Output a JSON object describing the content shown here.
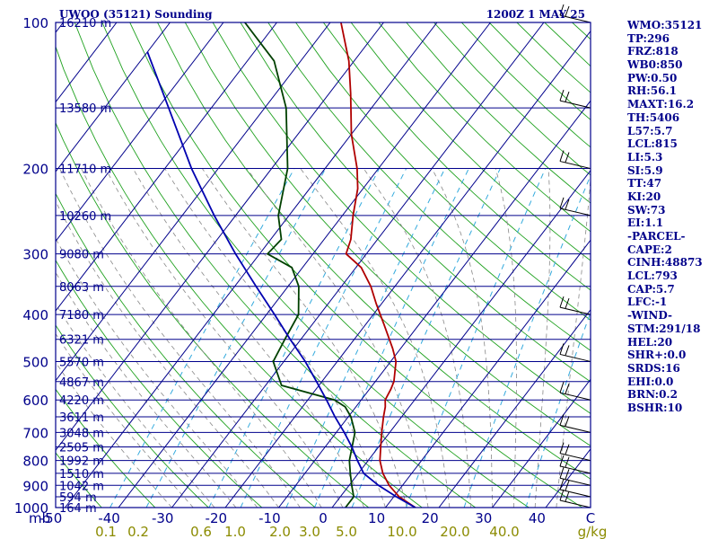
{
  "header": {
    "station": "UWOO (35121) Sounding",
    "time": "1200Z  1 MAY 25"
  },
  "chart_data": {
    "type": "line",
    "xlabel": "",
    "ylabel": "mb",
    "pressure_levels": [
      "100",
      "200",
      "300",
      "400",
      "500",
      "600",
      "700",
      "800",
      "900",
      "1000"
    ],
    "temp_ticks": [
      "-50",
      "-40",
      "-30",
      "-20",
      "-10",
      "0",
      "10",
      "20",
      "30",
      "40",
      "C"
    ],
    "mixing_ratio_ticks": [
      "0.1",
      "0.2",
      "0.6",
      "1.0",
      "2.0",
      "3.0",
      "5.0",
      "10.0",
      "20.0",
      "40.0",
      "g/kg"
    ],
    "height_labels": [
      {
        "p": 100,
        "label": "16210 m"
      },
      {
        "p": 150,
        "label": "13580 m"
      },
      {
        "p": 200,
        "label": "11710 m"
      },
      {
        "p": 250,
        "label": "10260 m"
      },
      {
        "p": 300,
        "label": "9080 m"
      },
      {
        "p": 350,
        "label": "8063 m"
      },
      {
        "p": 400,
        "label": "7180 m"
      },
      {
        "p": 450,
        "label": "6321 m"
      },
      {
        "p": 500,
        "label": "5570 m"
      },
      {
        "p": 550,
        "label": "4867 m"
      },
      {
        "p": 600,
        "label": "4220 m"
      },
      {
        "p": 650,
        "label": "3611 m"
      },
      {
        "p": 700,
        "label": "3048 m"
      },
      {
        "p": 750,
        "label": "2505 m"
      },
      {
        "p": 800,
        "label": "1992 m"
      },
      {
        "p": 850,
        "label": "1510 m"
      },
      {
        "p": 900,
        "label": "1042 m"
      },
      {
        "p": 950,
        "label": "594 m"
      },
      {
        "p": 1000,
        "label": "164 m"
      }
    ],
    "series": [
      {
        "key": "temperature",
        "color": "#b00000",
        "points": [
          {
            "p": 1000,
            "t": 15.6
          },
          {
            "p": 950,
            "t": 11
          },
          {
            "p": 900,
            "t": 7.5
          },
          {
            "p": 850,
            "t": 4.6
          },
          {
            "p": 800,
            "t": 2.2
          },
          {
            "p": 750,
            "t": 0.4
          },
          {
            "p": 700,
            "t": -1.5
          },
          {
            "p": 650,
            "t": -3.4
          },
          {
            "p": 620,
            "t": -4.5
          },
          {
            "p": 600,
            "t": -5.5
          },
          {
            "p": 570,
            "t": -6
          },
          {
            "p": 550,
            "t": -6.5
          },
          {
            "p": 500,
            "t": -9
          },
          {
            "p": 470,
            "t": -11.5
          },
          {
            "p": 420,
            "t": -16.5
          },
          {
            "p": 380,
            "t": -21
          },
          {
            "p": 350,
            "t": -24.5
          },
          {
            "p": 320,
            "t": -29
          },
          {
            "p": 300,
            "t": -33.8
          },
          {
            "p": 280,
            "t": -35
          },
          {
            "p": 250,
            "t": -38
          },
          {
            "p": 220,
            "t": -41
          },
          {
            "p": 200,
            "t": -44
          },
          {
            "p": 170,
            "t": -50
          },
          {
            "p": 140,
            "t": -56
          },
          {
            "p": 120,
            "t": -61
          },
          {
            "p": 100,
            "t": -68
          }
        ]
      },
      {
        "key": "dewpoint",
        "color": "#004000",
        "points": [
          {
            "p": 1000,
            "t": 2.5
          },
          {
            "p": 950,
            "t": 2.5
          },
          {
            "p": 900,
            "t": 0.5
          },
          {
            "p": 850,
            "t": -1.5
          },
          {
            "p": 800,
            "t": -3.5
          },
          {
            "p": 700,
            "t": -6.5
          },
          {
            "p": 650,
            "t": -9.5
          },
          {
            "p": 620,
            "t": -12
          },
          {
            "p": 600,
            "t": -15
          },
          {
            "p": 560,
            "t": -27
          },
          {
            "p": 500,
            "t": -32
          },
          {
            "p": 450,
            "t": -33
          },
          {
            "p": 400,
            "t": -34
          },
          {
            "p": 350,
            "t": -38
          },
          {
            "p": 320,
            "t": -42
          },
          {
            "p": 300,
            "t": -48.5
          },
          {
            "p": 280,
            "t": -48
          },
          {
            "p": 250,
            "t": -52
          },
          {
            "p": 200,
            "t": -57
          },
          {
            "p": 150,
            "t": -66
          },
          {
            "p": 120,
            "t": -75
          },
          {
            "p": 100,
            "t": -86
          }
        ]
      },
      {
        "key": "parcel",
        "color": "#0000b0",
        "points": [
          {
            "p": 1000,
            "t": 15.6
          },
          {
            "p": 950,
            "t": 10.5
          },
          {
            "p": 900,
            "t": 5.5
          },
          {
            "p": 850,
            "t": 1
          },
          {
            "p": 800,
            "t": -2
          },
          {
            "p": 750,
            "t": -5
          },
          {
            "p": 700,
            "t": -8.5
          },
          {
            "p": 650,
            "t": -12.5
          },
          {
            "p": 600,
            "t": -16.5
          },
          {
            "p": 550,
            "t": -21
          },
          {
            "p": 500,
            "t": -26
          },
          {
            "p": 450,
            "t": -32
          },
          {
            "p": 400,
            "t": -38.5
          },
          {
            "p": 350,
            "t": -46
          },
          {
            "p": 300,
            "t": -54.5
          },
          {
            "p": 250,
            "t": -64
          },
          {
            "p": 200,
            "t": -75
          },
          {
            "p": 150,
            "t": -88
          },
          {
            "p": 115,
            "t": -100
          }
        ]
      }
    ],
    "wind_levels": [
      1000,
      950,
      900,
      850,
      800,
      700,
      600,
      500,
      400,
      250,
      200,
      150,
      100
    ]
  },
  "indices": [
    "WMO:35121",
    "TP:296",
    "FRZ:818",
    "WB0:850",
    "PW:0.50",
    "RH:56.1",
    "MAXT:16.2",
    "TH:5406",
    "L57:5.7",
    "LCL:815",
    "LI:5.3",
    "SI:5.9",
    "TT:47",
    "KI:20",
    "SW:73",
    "EI:1.1",
    "-PARCEL-",
    "CAPE:2",
    "CINH:48873",
    "LCL:793",
    "CAP:5.7",
    "LFC:-1",
    "-WIND-",
    "STM:291/18",
    "HEL:20",
    "SHR+:0.0",
    "SRDS:16",
    "EHI:0.0",
    "BRN:0.2",
    "BSHR:10"
  ]
}
